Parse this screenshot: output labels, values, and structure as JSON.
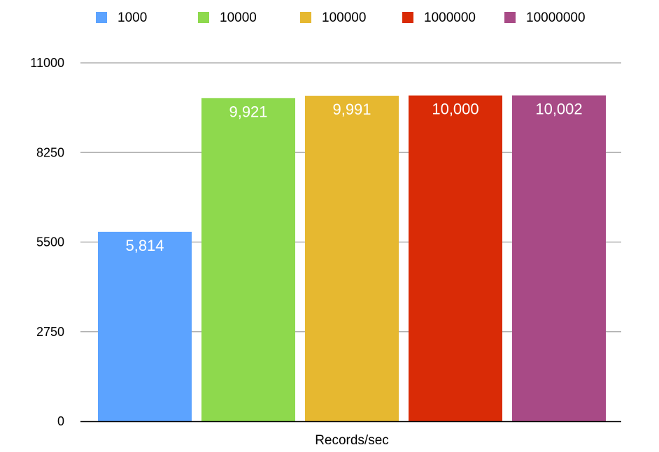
{
  "chart_data": {
    "type": "bar",
    "title": "",
    "xlabel": "",
    "ylabel": "",
    "categories": [
      "Records/sec"
    ],
    "series": [
      {
        "name": "1000",
        "values": [
          5814
        ],
        "value_label": "5,814",
        "color": "#5ca3ff"
      },
      {
        "name": "10000",
        "values": [
          9921
        ],
        "value_label": "9,921",
        "color": "#8ed94d"
      },
      {
        "name": "100000",
        "values": [
          9991
        ],
        "value_label": "9,991",
        "color": "#e6b830"
      },
      {
        "name": "1000000",
        "values": [
          10000
        ],
        "value_label": "10,000",
        "color": "#d92b06"
      },
      {
        "name": "10000000",
        "values": [
          10002
        ],
        "value_label": "10,002",
        "color": "#a84a86"
      }
    ],
    "ylim": [
      0,
      11000
    ],
    "yticks": [
      0,
      2750,
      5500,
      8250,
      11000
    ],
    "ytick_labels": [
      "0",
      "2750",
      "5500",
      "8250",
      "11000"
    ],
    "grid": true,
    "legend_position": "top"
  }
}
